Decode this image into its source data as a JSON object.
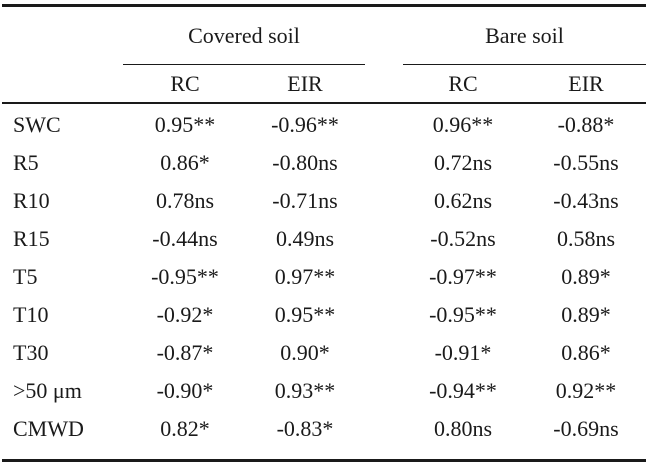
{
  "table": {
    "groups": [
      {
        "label": "Covered soil"
      },
      {
        "label": "Bare soil"
      }
    ],
    "columns": [
      "RC",
      "EIR",
      "RC",
      "EIR"
    ],
    "rows": [
      {
        "label": "SWC",
        "values": [
          "0.95**",
          "-0.96**",
          "0.96**",
          "-0.88*"
        ]
      },
      {
        "label": "R5",
        "values": [
          "0.86*",
          "-0.80ns",
          "0.72ns",
          "-0.55ns"
        ]
      },
      {
        "label": "R10",
        "values": [
          "0.78ns",
          "-0.71ns",
          "0.62ns",
          "-0.43ns"
        ]
      },
      {
        "label": "R15",
        "values": [
          "-0.44ns",
          "0.49ns",
          "-0.52ns",
          "0.58ns"
        ]
      },
      {
        "label": "T5",
        "values": [
          "-0.95**",
          "0.97**",
          "-0.97**",
          "0.89*"
        ]
      },
      {
        "label": "T10",
        "values": [
          "-0.92*",
          "0.95**",
          "-0.95**",
          "0.89*"
        ]
      },
      {
        "label": "T30",
        "values": [
          "-0.87*",
          "0.90*",
          "-0.91*",
          "0.86*"
        ]
      },
      {
        "label": ">50 μm",
        "values": [
          "-0.90*",
          "0.93**",
          "-0.94**",
          "0.92**"
        ]
      },
      {
        "label": "CMWD",
        "values": [
          "0.82*",
          "-0.83*",
          "0.80ns",
          "-0.69ns"
        ]
      }
    ]
  }
}
